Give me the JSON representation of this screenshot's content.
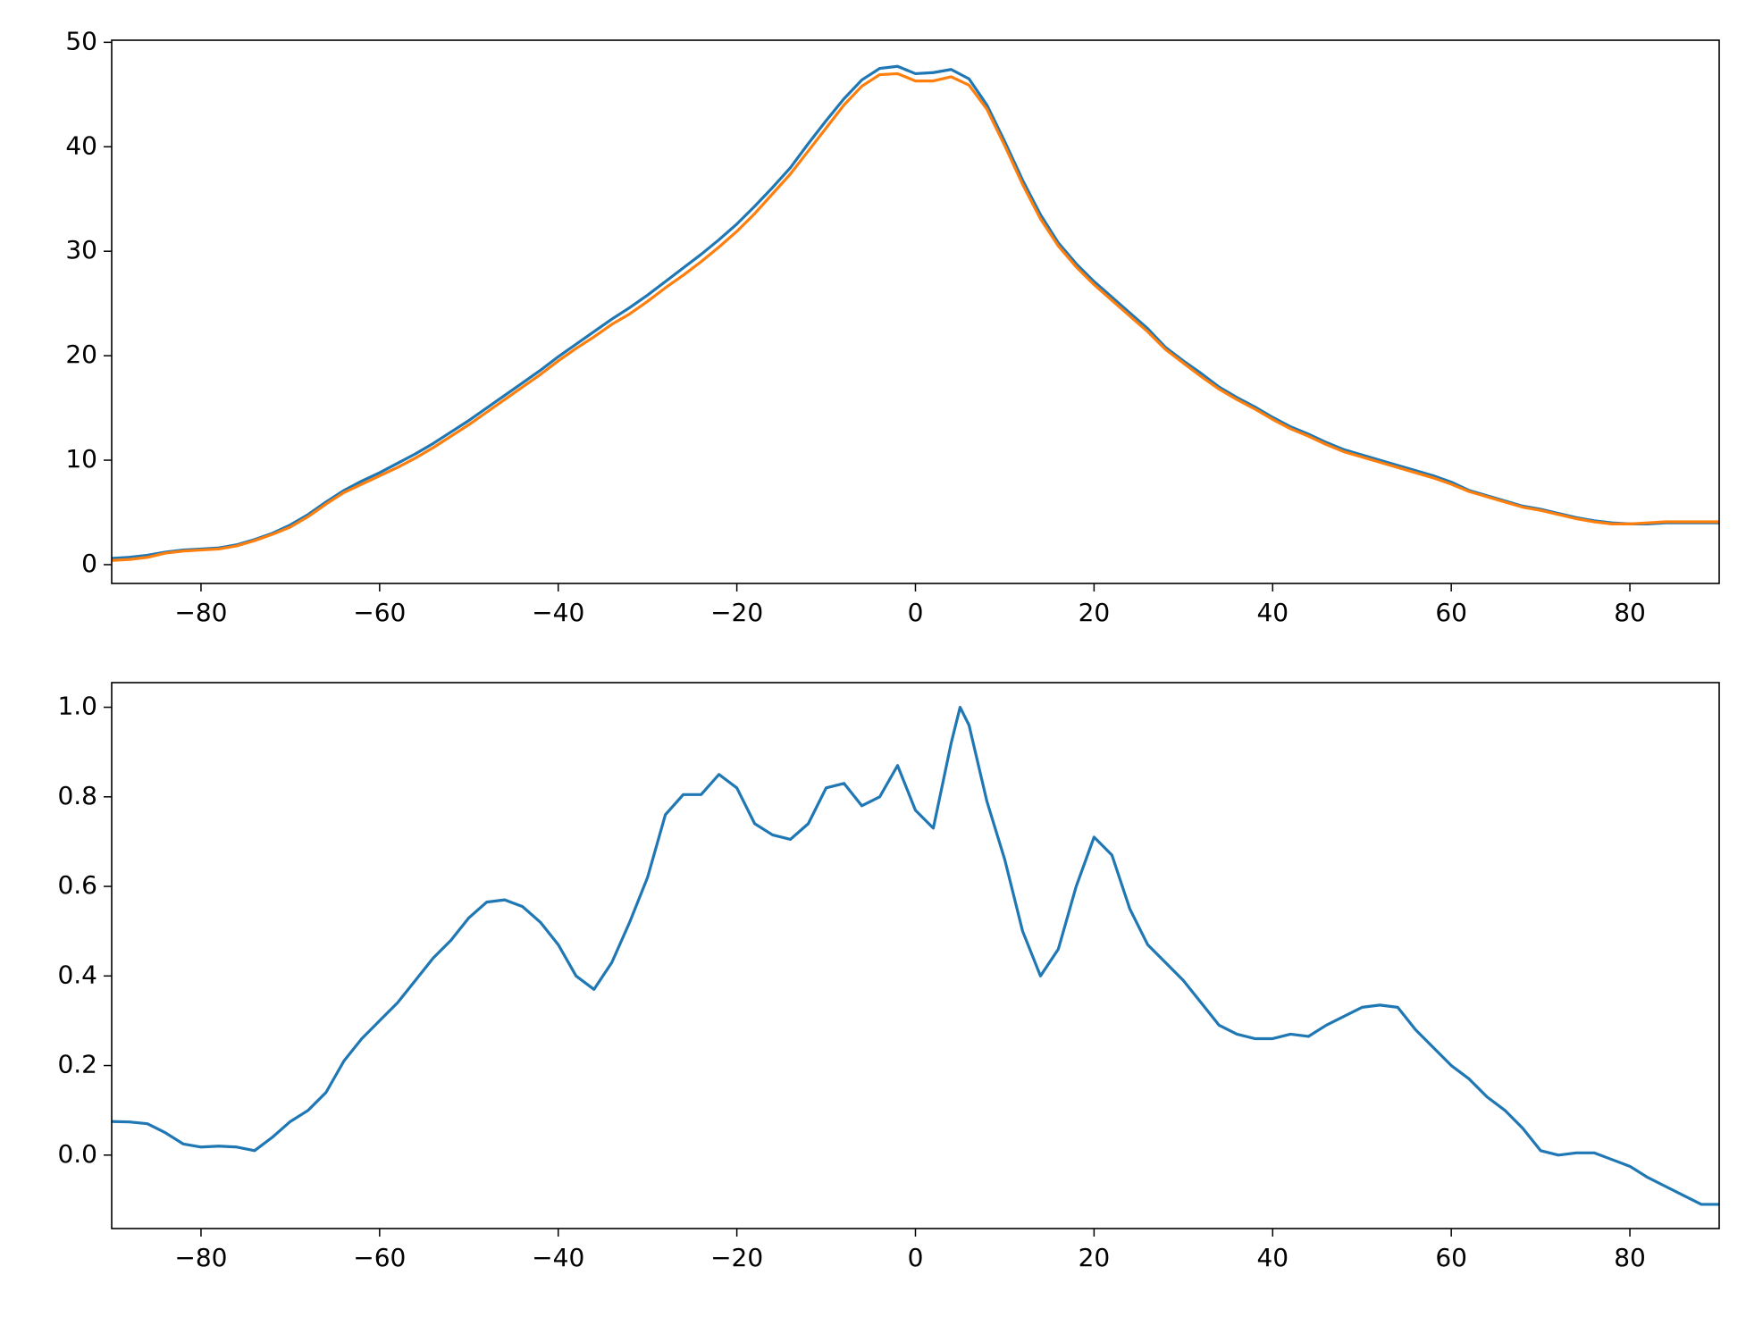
{
  "chart_data": [
    {
      "type": "line",
      "x": [
        -90,
        -88,
        -86,
        -84,
        -82,
        -80,
        -78,
        -76,
        -74,
        -72,
        -70,
        -68,
        -66,
        -64,
        -62,
        -60,
        -58,
        -56,
        -54,
        -52,
        -50,
        -48,
        -46,
        -44,
        -42,
        -40,
        -38,
        -36,
        -34,
        -32,
        -30,
        -28,
        -26,
        -24,
        -22,
        -20,
        -18,
        -16,
        -14,
        -12,
        -10,
        -8,
        -6,
        -4,
        -2,
        0,
        2,
        4,
        6,
        8,
        10,
        12,
        14,
        16,
        18,
        20,
        22,
        24,
        26,
        28,
        30,
        32,
        34,
        36,
        38,
        40,
        42,
        44,
        46,
        48,
        50,
        52,
        54,
        56,
        58,
        60,
        62,
        64,
        66,
        68,
        70,
        72,
        74,
        76,
        78,
        80,
        82,
        84,
        86,
        88,
        90
      ],
      "series": [
        {
          "color": "#1f77b4",
          "values": [
            0.6,
            0.7,
            0.9,
            1.2,
            1.4,
            1.5,
            1.6,
            1.9,
            2.4,
            3.0,
            3.8,
            4.8,
            6.0,
            7.1,
            8.0,
            8.8,
            9.7,
            10.6,
            11.6,
            12.7,
            13.8,
            15.0,
            16.2,
            17.4,
            18.6,
            19.9,
            21.1,
            22.3,
            23.5,
            24.6,
            25.8,
            27.1,
            28.4,
            29.7,
            31.1,
            32.6,
            34.3,
            36.1,
            38.0,
            40.3,
            42.5,
            44.6,
            46.4,
            47.5,
            47.7,
            47.0,
            47.1,
            47.4,
            46.5,
            44.0,
            40.5,
            36.8,
            33.5,
            30.8,
            28.8,
            27.1,
            25.6,
            24.1,
            22.6,
            20.8,
            19.5,
            18.3,
            17.0,
            16.0,
            15.1,
            14.1,
            13.2,
            12.5,
            11.7,
            11.0,
            10.5,
            10.0,
            9.5,
            9.0,
            8.5,
            7.9,
            7.1,
            6.6,
            6.1,
            5.6,
            5.3,
            4.9,
            4.5,
            4.2,
            4.0,
            3.9,
            3.9,
            4.0,
            4.0,
            4.0,
            4.0
          ]
        },
        {
          "color": "#ff7f0e",
          "values": [
            0.4,
            0.5,
            0.7,
            1.1,
            1.3,
            1.4,
            1.5,
            1.8,
            2.3,
            2.9,
            3.6,
            4.6,
            5.8,
            6.9,
            7.7,
            8.5,
            9.3,
            10.2,
            11.2,
            12.3,
            13.4,
            14.6,
            15.8,
            17.0,
            18.2,
            19.5,
            20.7,
            21.8,
            23.0,
            24.0,
            25.2,
            26.5,
            27.7,
            29.0,
            30.4,
            31.9,
            33.6,
            35.5,
            37.4,
            39.6,
            41.8,
            44.0,
            45.8,
            46.9,
            47.0,
            46.3,
            46.3,
            46.7,
            45.9,
            43.6,
            40.1,
            36.4,
            33.1,
            30.5,
            28.5,
            26.8,
            25.3,
            23.8,
            22.3,
            20.6,
            19.3,
            18.0,
            16.8,
            15.8,
            14.9,
            13.9,
            13.0,
            12.3,
            11.5,
            10.8,
            10.3,
            9.8,
            9.3,
            8.8,
            8.3,
            7.7,
            7.0,
            6.5,
            6.0,
            5.5,
            5.2,
            4.8,
            4.4,
            4.1,
            3.9,
            3.9,
            4.0,
            4.1,
            4.1,
            4.1,
            4.1
          ]
        }
      ],
      "xlim": [
        -90,
        90
      ],
      "ylim": [
        -1.8,
        50.2
      ],
      "xticks": [
        {
          "value": -80,
          "label": "−80"
        },
        {
          "value": -60,
          "label": "−60"
        },
        {
          "value": -40,
          "label": "−40"
        },
        {
          "value": -20,
          "label": "−20"
        },
        0,
        20,
        40,
        60,
        80
      ],
      "yticks": [
        0,
        10,
        20,
        30,
        40,
        50
      ]
    },
    {
      "type": "line",
      "x": [
        -90,
        -88,
        -86,
        -84,
        -82,
        -80,
        -78,
        -76,
        -74,
        -72,
        -70,
        -68,
        -66,
        -64,
        -62,
        -60,
        -58,
        -56,
        -54,
        -52,
        -50,
        -48,
        -46,
        -44,
        -42,
        -40,
        -38,
        -36,
        -34,
        -32,
        -30,
        -28,
        -26,
        -24,
        -22,
        -20,
        -18,
        -16,
        -14,
        -12,
        -10,
        -8,
        -6,
        -4,
        -2,
        0,
        2,
        4,
        5,
        6,
        8,
        10,
        12,
        14,
        16,
        18,
        20,
        22,
        24,
        26,
        28,
        30,
        32,
        34,
        36,
        38,
        40,
        42,
        44,
        46,
        48,
        50,
        52,
        54,
        56,
        58,
        60,
        62,
        64,
        66,
        68,
        70,
        72,
        74,
        76,
        78,
        80,
        82,
        84,
        86,
        88,
        90
      ],
      "series": [
        {
          "color": "#1f77b4",
          "values": [
            0.075,
            0.074,
            0.07,
            0.05,
            0.025,
            0.018,
            0.02,
            0.018,
            0.01,
            0.04,
            0.075,
            0.1,
            0.14,
            0.21,
            0.26,
            0.3,
            0.34,
            0.39,
            0.44,
            0.48,
            0.53,
            0.565,
            0.57,
            0.555,
            0.52,
            0.47,
            0.4,
            0.37,
            0.43,
            0.52,
            0.62,
            0.76,
            0.805,
            0.805,
            0.85,
            0.82,
            0.74,
            0.715,
            0.705,
            0.74,
            0.82,
            0.83,
            0.78,
            0.8,
            0.87,
            0.77,
            0.73,
            0.92,
            1.0,
            0.96,
            0.79,
            0.66,
            0.5,
            0.4,
            0.46,
            0.6,
            0.71,
            0.67,
            0.55,
            0.47,
            0.43,
            0.39,
            0.34,
            0.29,
            0.27,
            0.26,
            0.26,
            0.27,
            0.265,
            0.29,
            0.31,
            0.33,
            0.335,
            0.33,
            0.28,
            0.24,
            0.2,
            0.17,
            0.13,
            0.1,
            0.06,
            0.01,
            0.0,
            0.005,
            0.005,
            -0.01,
            -0.025,
            -0.05,
            -0.07,
            -0.09,
            -0.11,
            -0.11
          ]
        }
      ],
      "xlim": [
        -90,
        90
      ],
      "ylim": [
        -0.164,
        1.055
      ],
      "xticks": [
        {
          "value": -80,
          "label": "−80"
        },
        {
          "value": -60,
          "label": "−60"
        },
        {
          "value": -40,
          "label": "−40"
        },
        {
          "value": -20,
          "label": "−20"
        },
        0,
        20,
        40,
        60,
        80
      ],
      "yticks": [
        {
          "value": 0,
          "label": "0.0"
        },
        0.2,
        0.4,
        0.6,
        0.8,
        {
          "value": 1,
          "label": "1.0"
        }
      ]
    }
  ]
}
